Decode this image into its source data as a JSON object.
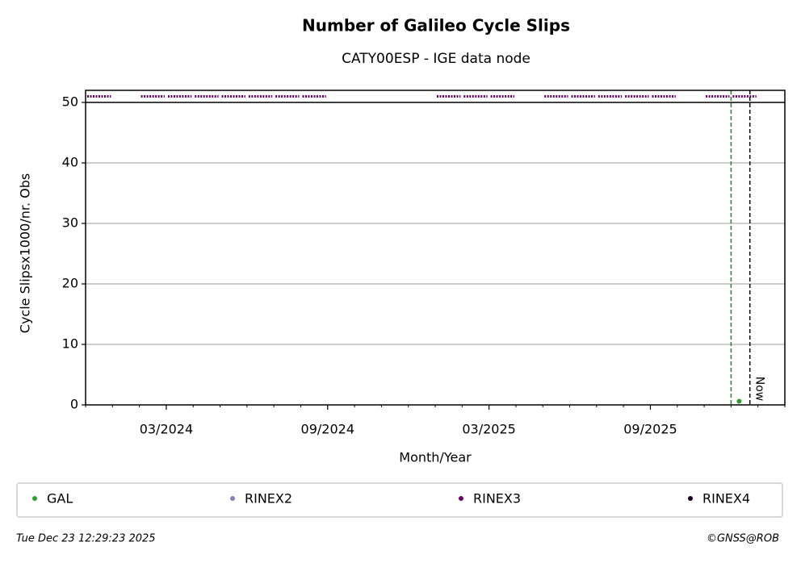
{
  "chart_data": {
    "type": "availability_line",
    "title": "Number of Galileo Cycle Slips",
    "subtitle": "CATY00ESP - IGE data node",
    "x_label": "Month/Year",
    "y_label": "Cycle Slipsx1000/nr. Obs",
    "xlim": [
      "2023-12",
      "2026-02"
    ],
    "xticks": [
      {
        "value": "2024-03",
        "label": "03/2024"
      },
      {
        "value": "2024-09",
        "label": "09/2024"
      },
      {
        "value": "2025-03",
        "label": "03/2025"
      },
      {
        "value": "2025-09",
        "label": "09/2025"
      }
    ],
    "ylim": [
      0,
      52
    ],
    "yticks": [
      0,
      10,
      20,
      30,
      40,
      50
    ],
    "grid": true,
    "series": [
      {
        "name": "GAL",
        "color": "#2ca02c",
        "x": [
          "2025-12"
        ],
        "values": [
          0.6
        ]
      },
      {
        "name": "RINEX2",
        "color": "#8080c0",
        "x": [],
        "values": []
      },
      {
        "name": "RINEX3",
        "color": "#6b006b",
        "x": [
          "2023-12",
          "2024-02",
          "2024-03",
          "2024-04",
          "2024-05",
          "2024-06",
          "2024-07",
          "2024-08",
          "2025-01",
          "2025-02",
          "2025-03",
          "2025-05",
          "2025-06",
          "2025-07",
          "2025-08",
          "2025-09",
          "2025-11",
          "2025-12"
        ],
        "values": [
          51,
          51,
          51,
          51,
          51,
          51,
          51,
          51,
          51,
          51,
          51,
          51,
          51,
          51,
          51,
          51,
          51,
          51
        ]
      },
      {
        "name": "RINEX4",
        "color": "#1a0020",
        "x": [],
        "values": []
      }
    ],
    "markers": [
      {
        "x": "2025-12",
        "color": "#1a8a1a",
        "kind": "start"
      },
      {
        "x": "2025-12",
        "color": "#000000",
        "kind": "now",
        "label": "Now"
      }
    ],
    "footer_left": "Tue Dec 23 12:29:23 2025",
    "footer_right": "©GNSS@ROB"
  }
}
